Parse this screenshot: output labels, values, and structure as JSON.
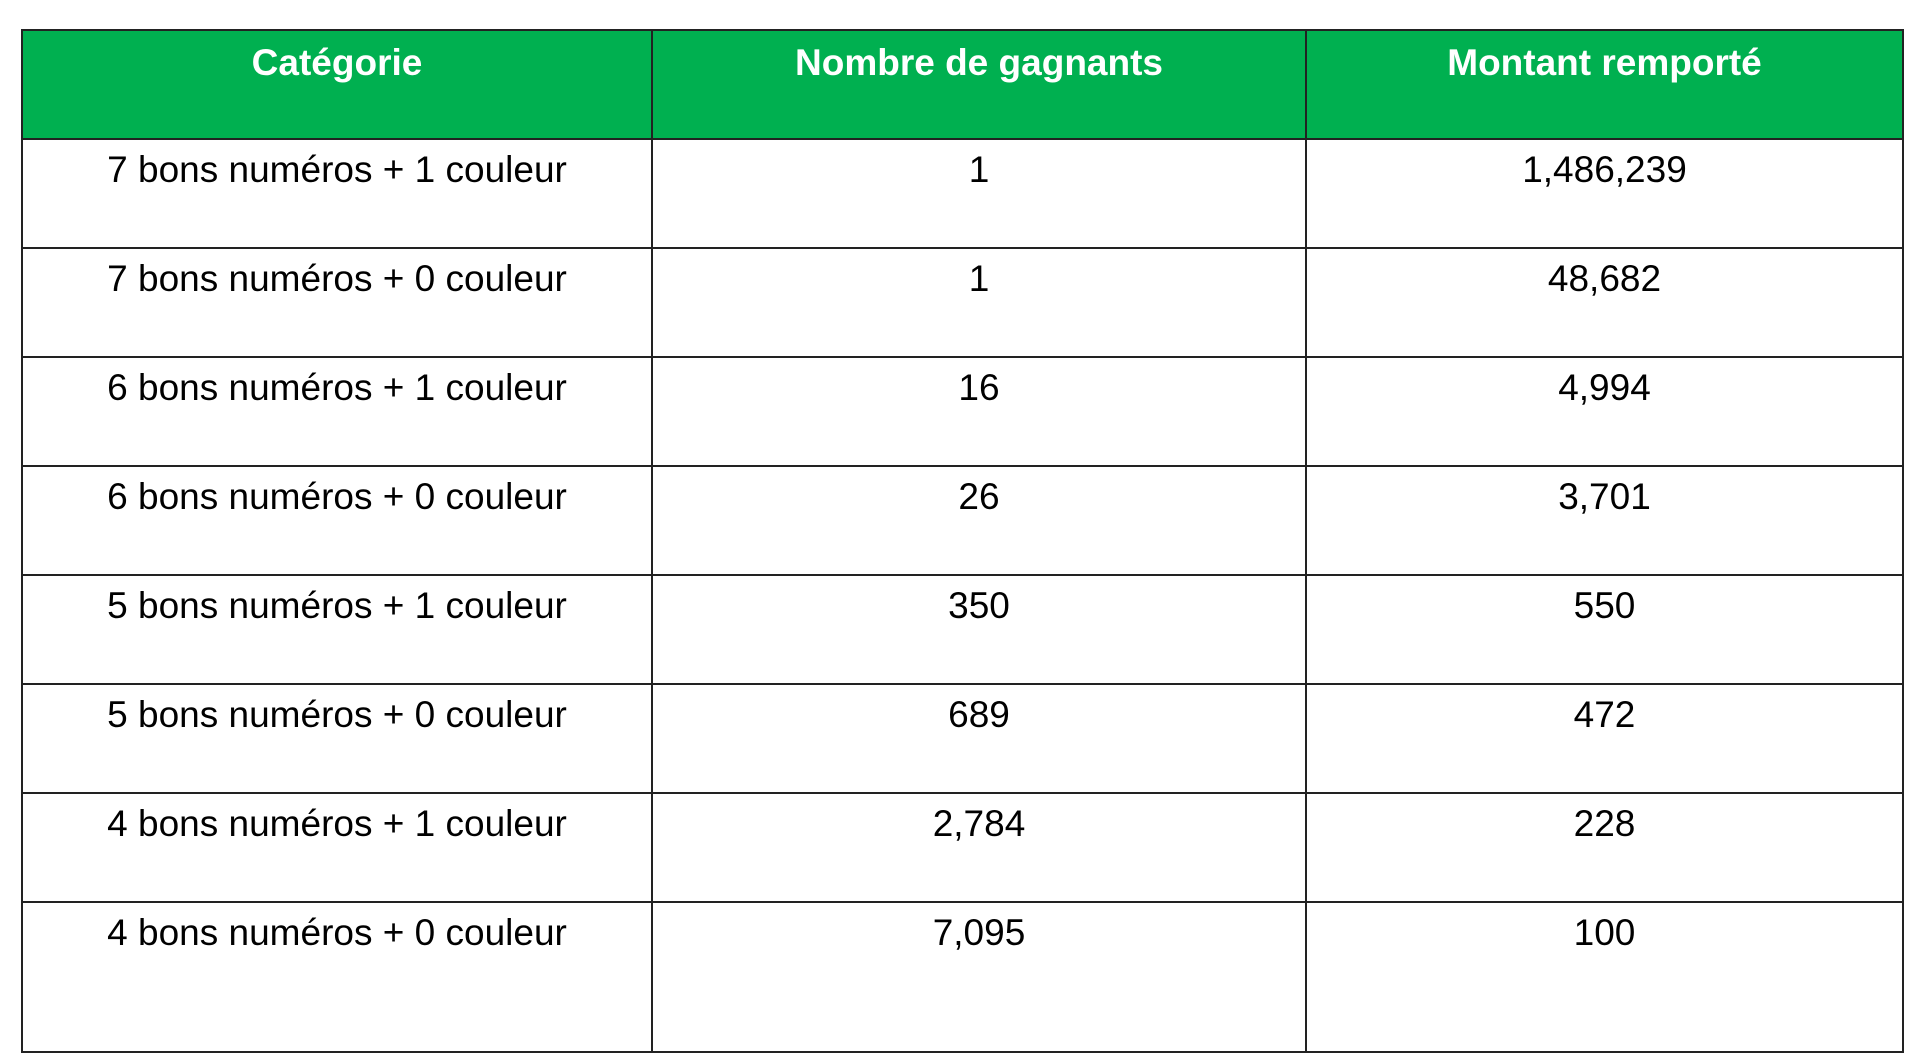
{
  "table": {
    "header_color": "#00B050",
    "headers": [
      "Catégorie",
      "Nombre de gagnants",
      "Montant remporté"
    ],
    "rows": [
      [
        "7 bons numéros + 1 couleur",
        "1",
        "1,486,239"
      ],
      [
        "7 bons numéros + 0 couleur",
        "1",
        "48,682"
      ],
      [
        "6 bons numéros + 1 couleur",
        "16",
        "4,994"
      ],
      [
        "6 bons numéros + 0 couleur",
        "26",
        "3,701"
      ],
      [
        "5 bons numéros + 1 couleur",
        "350",
        "550"
      ],
      [
        "5 bons numéros + 0 couleur",
        "689",
        "472"
      ],
      [
        "4 bons numéros + 1 couleur",
        "2,784",
        "228"
      ],
      [
        "4 bons numéros + 0 couleur",
        "7,095",
        "100"
      ]
    ]
  }
}
